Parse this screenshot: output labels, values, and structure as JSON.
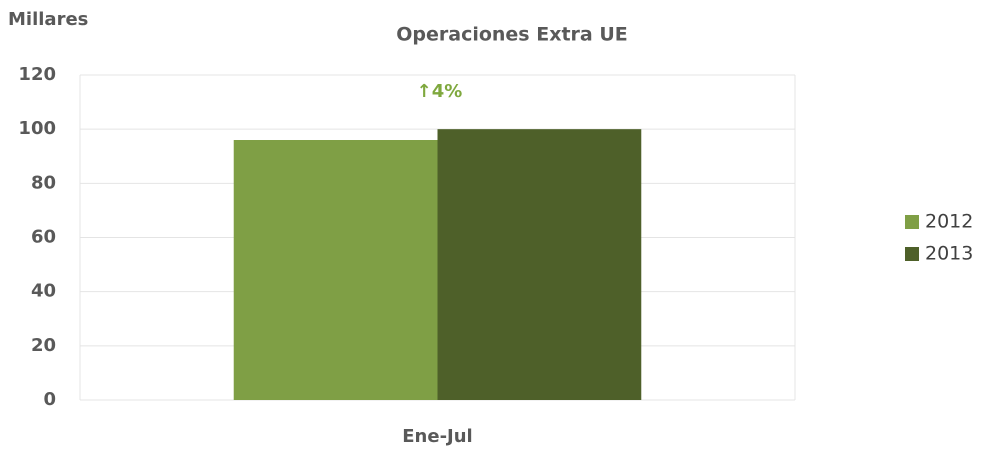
{
  "chart_data": {
    "type": "bar",
    "title": "Operaciones Extra UE",
    "y_label": "Millares",
    "categories": [
      "Ene-Jul"
    ],
    "series": [
      {
        "name": "2012",
        "color": "#7f9f45",
        "values": [
          96
        ]
      },
      {
        "name": "2013",
        "color": "#4e6029",
        "values": [
          100
        ]
      }
    ],
    "annotation": "↑4%",
    "annotation_color": "#7fa83e",
    "ylim": [
      0,
      120
    ],
    "yticks": [
      0,
      20,
      40,
      60,
      80,
      100,
      120
    ],
    "grid": true,
    "legend": "right"
  }
}
